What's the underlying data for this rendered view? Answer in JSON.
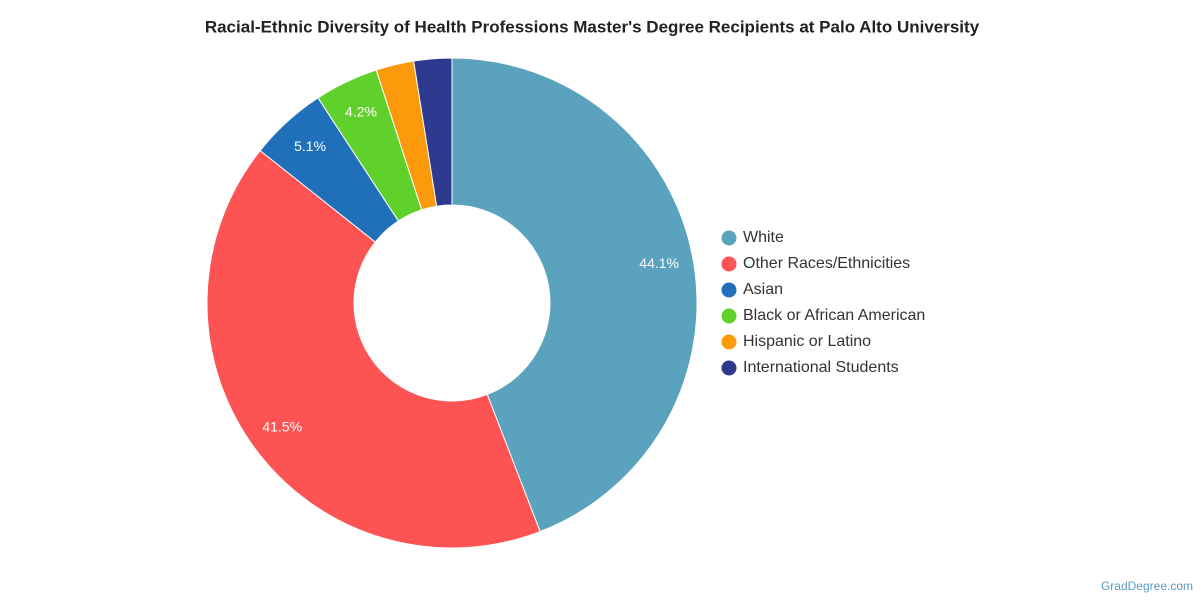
{
  "chart_data": {
    "type": "pie",
    "title": "Racial-Ethnic Diversity of Health Professions Master's Degree Recipients at Palo Alto University",
    "categories": [
      "White",
      "Other Races/Ethnicities",
      "Asian",
      "Black or African American",
      "Hispanic or Latino",
      "International Students"
    ],
    "values": [
      44.1,
      41.5,
      5.1,
      4.2,
      2.5,
      2.5
    ],
    "value_labels": [
      "44.1%",
      "41.5%",
      "5.1%",
      "4.2%",
      null,
      null
    ],
    "colors": [
      "#5ba2bf",
      "#fe5353",
      "#1f70b9",
      "#60d12a",
      "#fd9a0b",
      "#2d3a8e"
    ],
    "hole": 0.4,
    "legend": "right",
    "source": "GradDegree.com"
  }
}
